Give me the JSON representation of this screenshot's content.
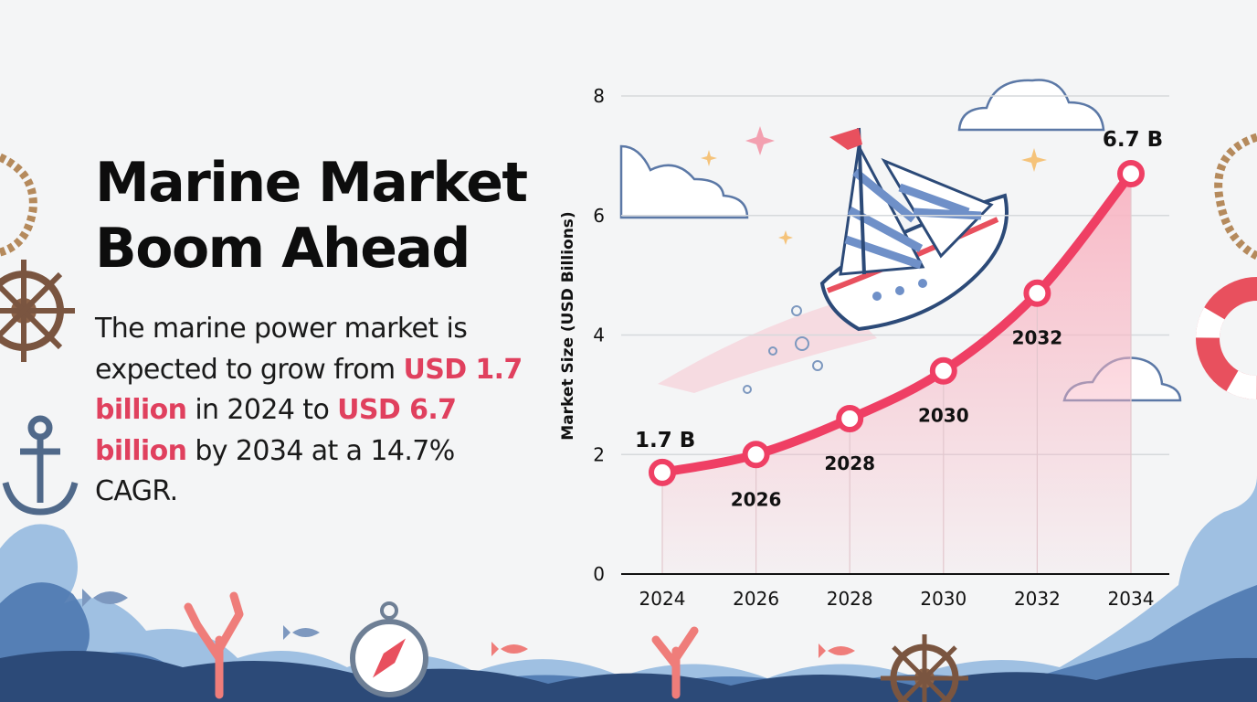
{
  "headline": {
    "line1": "Marine Market",
    "line2": "Boom Ahead"
  },
  "description": {
    "part1": "The marine power market is expected to grow from ",
    "hl1": "USD 1.7 billion",
    "part2": " in 2024 to ",
    "hl2": "USD 6.7 billion",
    "part3": " by 2034 at a 14.7% CAGR."
  },
  "colors": {
    "line": "#ef3f64",
    "fill": "#f9b5c3",
    "text": "#111111",
    "highlight": "#e0405e",
    "grid": "#d6d9dc"
  },
  "chart_data": {
    "type": "line",
    "x": [
      "2024",
      "2026",
      "2028",
      "2030",
      "2032",
      "2034"
    ],
    "series": [
      {
        "values": [
          1.7,
          2.0,
          2.6,
          3.4,
          4.7,
          6.7
        ]
      }
    ],
    "point_labels": [
      "1.7 B",
      "2026",
      "2028",
      "2030",
      "2032",
      "6.7 B"
    ],
    "ylabel": "Market Size (USD Billions)",
    "xlabel": "",
    "title": "",
    "ylim": [
      0,
      8
    ],
    "yticks": [
      0,
      2,
      4,
      6,
      8
    ],
    "grid": true,
    "area_fill": true
  }
}
